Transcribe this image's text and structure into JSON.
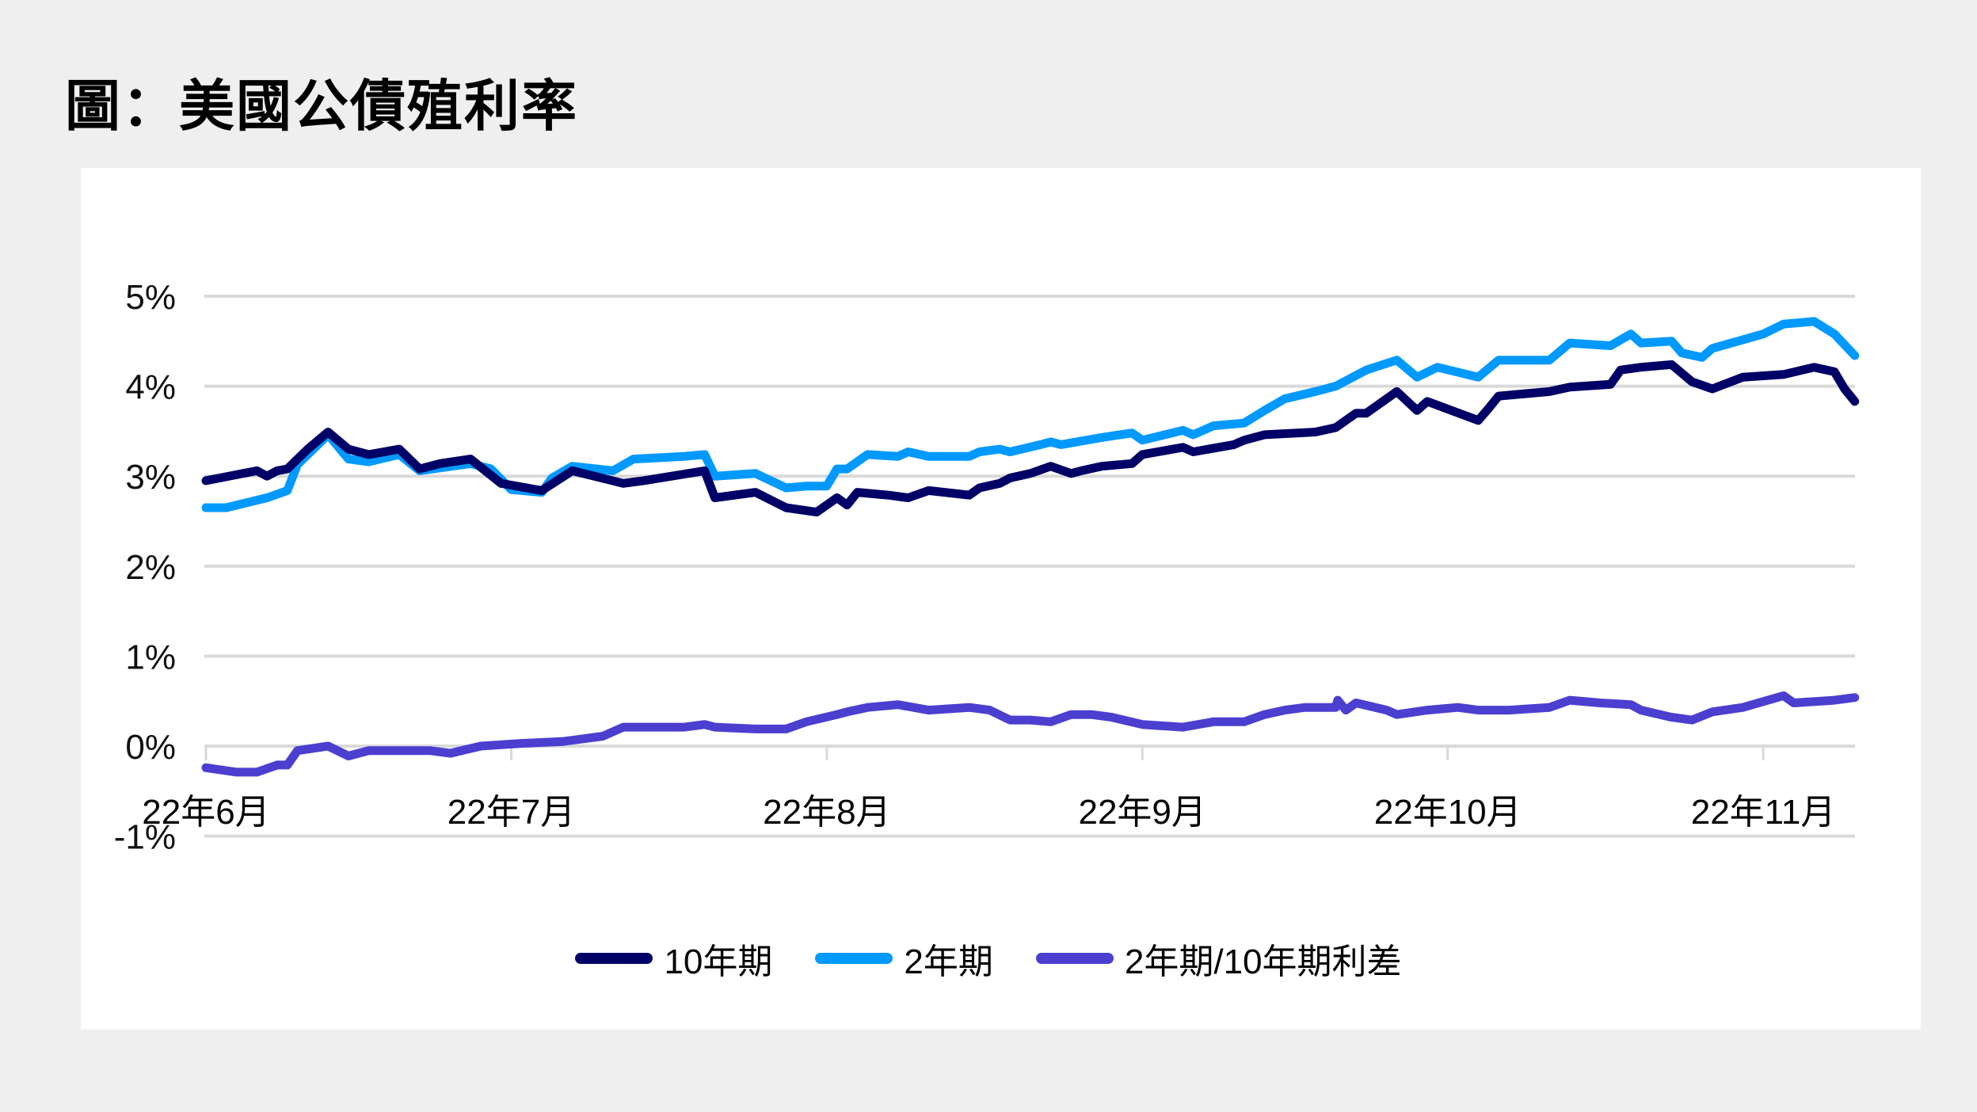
{
  "title": "圖：美國公債殖利率",
  "colors": {
    "background": "#efefef",
    "panel": "#ffffff",
    "grid": "#d9d9d9",
    "ten_year": "#000066",
    "two_year": "#0099ff",
    "spread": "#4b3fd0"
  },
  "legend": [
    {
      "label": "10年期",
      "color": "#000066"
    },
    {
      "label": "2年期",
      "color": "#0099ff"
    },
    {
      "label": "2年期/10年期利差",
      "color": "#4b3fd0"
    }
  ],
  "chart_data": {
    "type": "line",
    "title": "圖：美國公債殖利率",
    "xlabel": "",
    "ylabel": "",
    "ylim": [
      -1,
      5
    ],
    "yticks": [
      "5%",
      "4%",
      "3%",
      "2%",
      "1%",
      "0%",
      "-1%"
    ],
    "ytick_values": [
      5,
      4,
      3,
      2,
      1,
      0,
      -1
    ],
    "xticks": [
      {
        "label": "22年6月",
        "day": 0
      },
      {
        "label": "22年7月",
        "day": 30
      },
      {
        "label": "22年8月",
        "day": 61
      },
      {
        "label": "22年9月",
        "day": 92
      },
      {
        "label": "22年10月",
        "day": 122
      },
      {
        "label": "22年11月",
        "day": 153
      }
    ],
    "x_unit": "days since 2022-06-01",
    "grid": true,
    "legend_position": "bottom",
    "series": [
      {
        "name": "10年期",
        "color": "#000066",
        "points": [
          [
            0,
            2.95
          ],
          [
            5,
            3.06
          ],
          [
            6,
            3.0
          ],
          [
            7,
            3.06
          ],
          [
            8,
            3.08
          ],
          [
            10,
            3.3
          ],
          [
            12,
            3.49
          ],
          [
            14,
            3.3
          ],
          [
            16,
            3.24
          ],
          [
            19,
            3.3
          ],
          [
            21,
            3.08
          ],
          [
            23,
            3.14
          ],
          [
            26,
            3.19
          ],
          [
            29,
            2.92
          ],
          [
            33,
            2.84
          ],
          [
            36,
            3.06
          ],
          [
            41,
            2.92
          ],
          [
            43,
            2.95
          ],
          [
            49,
            3.06
          ],
          [
            50,
            2.76
          ],
          [
            54,
            2.82
          ],
          [
            57,
            2.65
          ],
          [
            60,
            2.6
          ],
          [
            62,
            2.76
          ],
          [
            63,
            2.68
          ],
          [
            64,
            2.82
          ],
          [
            67,
            2.79
          ],
          [
            69,
            2.76
          ],
          [
            71,
            2.84
          ],
          [
            75,
            2.79
          ],
          [
            76,
            2.87
          ],
          [
            78,
            2.92
          ],
          [
            79,
            2.98
          ],
          [
            81,
            3.03
          ],
          [
            83,
            3.11
          ],
          [
            85,
            3.03
          ],
          [
            86,
            3.06
          ],
          [
            88,
            3.11
          ],
          [
            91,
            3.14
          ],
          [
            92,
            3.24
          ],
          [
            96,
            3.32
          ],
          [
            97,
            3.27
          ],
          [
            101,
            3.35
          ],
          [
            102,
            3.4
          ],
          [
            104,
            3.46
          ],
          [
            109,
            3.49
          ],
          [
            111,
            3.54
          ],
          [
            113,
            3.7
          ],
          [
            114,
            3.7
          ],
          [
            117,
            3.94
          ],
          [
            119,
            3.73
          ],
          [
            120,
            3.83
          ],
          [
            125,
            3.62
          ],
          [
            126,
            3.75
          ],
          [
            127,
            3.89
          ],
          [
            132,
            3.94
          ],
          [
            134,
            3.99
          ],
          [
            138,
            4.02
          ],
          [
            139,
            4.18
          ],
          [
            141,
            4.21
          ],
          [
            144,
            4.24
          ],
          [
            146,
            4.05
          ],
          [
            148,
            3.97
          ],
          [
            151,
            4.1
          ],
          [
            155,
            4.13
          ],
          [
            158,
            4.21
          ],
          [
            160,
            4.16
          ],
          [
            161,
            3.97
          ],
          [
            162,
            3.83
          ]
        ]
      },
      {
        "name": "2年期",
        "color": "#0099ff",
        "points": [
          [
            0,
            2.65
          ],
          [
            2,
            2.65
          ],
          [
            6,
            2.76
          ],
          [
            8,
            2.84
          ],
          [
            9,
            3.13
          ],
          [
            12,
            3.46
          ],
          [
            14,
            3.19
          ],
          [
            16,
            3.16
          ],
          [
            19,
            3.24
          ],
          [
            21,
            3.06
          ],
          [
            26,
            3.14
          ],
          [
            28,
            3.08
          ],
          [
            30,
            2.85
          ],
          [
            33,
            2.82
          ],
          [
            34,
            2.98
          ],
          [
            36,
            3.11
          ],
          [
            40,
            3.06
          ],
          [
            42,
            3.19
          ],
          [
            47,
            3.22
          ],
          [
            49,
            3.24
          ],
          [
            50,
            3.0
          ],
          [
            54,
            3.03
          ],
          [
            57,
            2.87
          ],
          [
            59,
            2.89
          ],
          [
            61,
            2.89
          ],
          [
            62,
            3.08
          ],
          [
            63,
            3.08
          ],
          [
            65,
            3.24
          ],
          [
            68,
            3.22
          ],
          [
            69,
            3.27
          ],
          [
            71,
            3.22
          ],
          [
            75,
            3.22
          ],
          [
            76,
            3.27
          ],
          [
            78,
            3.3
          ],
          [
            79,
            3.27
          ],
          [
            82,
            3.35
          ],
          [
            83,
            3.38
          ],
          [
            84,
            3.35
          ],
          [
            88,
            3.43
          ],
          [
            91,
            3.48
          ],
          [
            92,
            3.4
          ],
          [
            96,
            3.51
          ],
          [
            97,
            3.46
          ],
          [
            99,
            3.56
          ],
          [
            102,
            3.59
          ],
          [
            104,
            3.73
          ],
          [
            106,
            3.86
          ],
          [
            109,
            3.94
          ],
          [
            111,
            4.0
          ],
          [
            114,
            4.18
          ],
          [
            117,
            4.29
          ],
          [
            119,
            4.1
          ],
          [
            121,
            4.21
          ],
          [
            125,
            4.1
          ],
          [
            127,
            4.29
          ],
          [
            132,
            4.29
          ],
          [
            134,
            4.48
          ],
          [
            138,
            4.45
          ],
          [
            140,
            4.58
          ],
          [
            141,
            4.48
          ],
          [
            144,
            4.5
          ],
          [
            145,
            4.37
          ],
          [
            147,
            4.32
          ],
          [
            148,
            4.42
          ],
          [
            153,
            4.58
          ],
          [
            155,
            4.69
          ],
          [
            158,
            4.72
          ],
          [
            160,
            4.58
          ],
          [
            162,
            4.34
          ]
        ]
      },
      {
        "name": "2年期/10年期利差",
        "color": "#4b3fd0",
        "points": [
          [
            0,
            -0.24
          ],
          [
            3,
            -0.29
          ],
          [
            5,
            -0.29
          ],
          [
            7,
            -0.21
          ],
          [
            8,
            -0.21
          ],
          [
            9,
            -0.05
          ],
          [
            12,
            0.0
          ],
          [
            14,
            -0.11
          ],
          [
            16,
            -0.05
          ],
          [
            22,
            -0.05
          ],
          [
            24,
            -0.08
          ],
          [
            27,
            0.0
          ],
          [
            31,
            0.03
          ],
          [
            35,
            0.05
          ],
          [
            37,
            0.08
          ],
          [
            39,
            0.11
          ],
          [
            41,
            0.21
          ],
          [
            42,
            0.21
          ],
          [
            47,
            0.21
          ],
          [
            49,
            0.24
          ],
          [
            50,
            0.21
          ],
          [
            54,
            0.19
          ],
          [
            57,
            0.19
          ],
          [
            59,
            0.27
          ],
          [
            62,
            0.35
          ],
          [
            63,
            0.38
          ],
          [
            65,
            0.43
          ],
          [
            68,
            0.46
          ],
          [
            71,
            0.4
          ],
          [
            75,
            0.43
          ],
          [
            77,
            0.4
          ],
          [
            79,
            0.29
          ],
          [
            81,
            0.29
          ],
          [
            83,
            0.27
          ],
          [
            85,
            0.35
          ],
          [
            87,
            0.35
          ],
          [
            89,
            0.32
          ],
          [
            92,
            0.24
          ],
          [
            96,
            0.21
          ],
          [
            99,
            0.27
          ],
          [
            102,
            0.27
          ],
          [
            104,
            0.35
          ],
          [
            106,
            0.4
          ],
          [
            108,
            0.43
          ],
          [
            111,
            0.43
          ],
          [
            111.2,
            0.51
          ],
          [
            112,
            0.4
          ],
          [
            113,
            0.48
          ],
          [
            116,
            0.4
          ],
          [
            117,
            0.35
          ],
          [
            120,
            0.4
          ],
          [
            123,
            0.43
          ],
          [
            125,
            0.4
          ],
          [
            128,
            0.4
          ],
          [
            132,
            0.43
          ],
          [
            134,
            0.51
          ],
          [
            137,
            0.48
          ],
          [
            140,
            0.46
          ],
          [
            141,
            0.4
          ],
          [
            144,
            0.32
          ],
          [
            146,
            0.29
          ],
          [
            148,
            0.38
          ],
          [
            151,
            0.43
          ],
          [
            155,
            0.56
          ],
          [
            156,
            0.48
          ],
          [
            160,
            0.51
          ],
          [
            162,
            0.54
          ]
        ]
      }
    ]
  }
}
